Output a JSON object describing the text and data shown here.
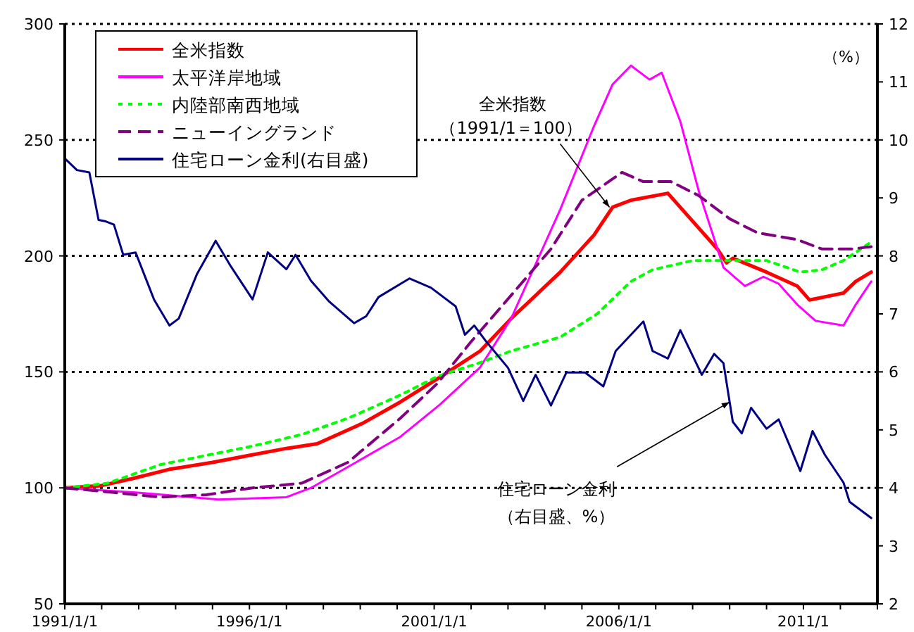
{
  "chart_data": {
    "type": "line",
    "y2label": "（%）",
    "xlim": [
      "1991-01-01",
      "2013-01-01"
    ],
    "xticks": [
      {
        "value": "1991-01-01",
        "label": "1991/1/1"
      },
      {
        "value": "1992-01-01",
        "label": null
      },
      {
        "value": "1993-01-01",
        "label": null
      },
      {
        "value": "1994-01-01",
        "label": null
      },
      {
        "value": "1995-01-01",
        "label": null
      },
      {
        "value": "1996-01-01",
        "label": "1996/1/1"
      },
      {
        "value": "1997-01-01",
        "label": null
      },
      {
        "value": "1998-01-01",
        "label": null
      },
      {
        "value": "1999-01-01",
        "label": null
      },
      {
        "value": "2000-01-01",
        "label": null
      },
      {
        "value": "2001-01-01",
        "label": "2001/1/1"
      },
      {
        "value": "2002-01-01",
        "label": null
      },
      {
        "value": "2003-01-01",
        "label": null
      },
      {
        "value": "2004-01-01",
        "label": null
      },
      {
        "value": "2005-01-01",
        "label": null
      },
      {
        "value": "2006-01-01",
        "label": "2006/1/1"
      },
      {
        "value": "2007-01-01",
        "label": null
      },
      {
        "value": "2008-01-01",
        "label": null
      },
      {
        "value": "2009-01-01",
        "label": null
      },
      {
        "value": "2010-01-01",
        "label": null
      },
      {
        "value": "2011-01-01",
        "label": "2011/1"
      },
      {
        "value": "2012-01-01",
        "label": null
      },
      {
        "value": "2013-01-01",
        "label": null
      }
    ],
    "ylim": [
      50,
      300
    ],
    "yticks": [
      50,
      100,
      150,
      200,
      250,
      300
    ],
    "y2lim": [
      2,
      12
    ],
    "y2ticks": [
      2,
      3,
      4,
      5,
      6,
      7,
      8,
      9,
      10,
      11,
      12
    ],
    "grid": "y",
    "legend": "top left",
    "annotations": [
      "全米指数",
      {
        "text": "（1991/1＝100）",
        "x": "2005-10",
        "y": 221
      },
      {
        "text": "住宅ローン金利",
        "x": "2009-01",
        "y": 137
      },
      "（右目盛、%）"
    ],
    "series": [
      {
        "name": "全米指数",
        "color": "#ff0000",
        "line_style": "solid",
        "x": [
          "1991-01",
          "1992-01",
          "1992-11",
          "1993-11",
          "1995-01",
          "1996-01",
          "1997-01",
          "1997-11",
          "1999-02",
          "2000-02",
          "2001-02",
          "2002-04",
          "2003-02",
          "2004-06",
          "2005-05",
          "2005-11",
          "2006-05",
          "2007-05",
          "2008-09",
          "2008-12",
          "2009-02",
          "2010-01",
          "2010-11",
          "2011-03",
          "2012-02",
          "2012-06",
          "2012-11"
        ],
        "values": [
          100,
          101,
          104,
          108,
          111,
          114,
          117,
          119,
          128,
          137,
          147,
          159,
          173,
          193,
          209,
          221,
          224,
          227,
          203,
          197,
          199,
          193,
          187,
          181,
          184,
          189,
          193
        ]
      },
      {
        "name": "太平洋岸地域",
        "color": "#ff00ff",
        "line_style": "solid",
        "x": [
          "1991-01",
          "1992-12",
          "1995-03",
          "1997-01",
          "1997-09",
          "1998-09",
          "2000-02",
          "2001-03",
          "2002-04",
          "2003-02",
          "2004-06",
          "2005-05",
          "2005-11",
          "2006-05",
          "2006-11",
          "2007-03",
          "2007-09",
          "2008-03",
          "2008-11",
          "2009-06",
          "2009-12",
          "2010-05",
          "2010-11",
          "2011-05",
          "2012-02",
          "2012-06",
          "2012-11"
        ],
        "values": [
          100,
          98,
          95,
          96,
          100,
          109,
          122,
          136,
          152,
          173,
          220,
          256,
          274,
          282,
          276,
          279,
          258,
          228,
          195,
          187,
          191,
          188,
          179,
          172,
          170,
          179,
          189
        ]
      },
      {
        "name": "内陸部南西地域",
        "color": "#00ff00",
        "line_style": "dotted",
        "x": [
          "1991-01",
          "1992-03",
          "1993-08",
          "1994-11",
          "1996-02",
          "1997-06",
          "1998-09",
          "2000-02",
          "2001-02",
          "2002-04",
          "2003-02",
          "2004-06",
          "2005-06",
          "2006-05",
          "2006-12",
          "2008-01",
          "2008-11",
          "2010-01",
          "2010-12",
          "2011-07",
          "2012-02",
          "2012-11"
        ],
        "values": [
          100,
          102,
          110,
          114,
          118,
          123,
          130,
          140,
          148,
          154,
          159,
          165,
          175,
          189,
          194,
          198,
          198,
          198,
          193,
          194,
          198,
          206
        ]
      },
      {
        "name": "ニューイングランド",
        "color": "#800080",
        "line_style": "dashed",
        "x": [
          "1991-01",
          "1992-05",
          "1993-08",
          "1994-11",
          "1996-02",
          "1997-06",
          "1998-09",
          "2000-02",
          "2001-02",
          "2002-01",
          "2003-02",
          "2004-03",
          "2005-01",
          "2006-02",
          "2006-09",
          "2007-06",
          "2008-03",
          "2009-01",
          "2009-10",
          "2010-11",
          "2011-07",
          "2012-05",
          "2012-11"
        ],
        "values": [
          100,
          98,
          96,
          97,
          100,
          102,
          111,
          130,
          145,
          163,
          183,
          203,
          224,
          236,
          232,
          232,
          226,
          216,
          210,
          207,
          203,
          203,
          204
        ]
      },
      {
        "name": "住宅ローン金利(右目盛)",
        "color": "#000080",
        "line_style": "solid",
        "axis": "y2",
        "x": [
          "1991-01",
          "1991-05",
          "1991-09",
          "1991-12",
          "1992-02",
          "1992-05",
          "1992-08",
          "1992-12",
          "1993-06",
          "1993-11",
          "1994-02",
          "1994-08",
          "1995-02",
          "1995-07",
          "1996-02",
          "1996-07",
          "1997-01",
          "1997-04",
          "1997-09",
          "1998-03",
          "1998-11",
          "1999-03",
          "1999-07",
          "2000-05",
          "2000-12",
          "2001-08",
          "2001-11",
          "2002-02",
          "2002-06",
          "2003-01",
          "2003-06",
          "2003-10",
          "2004-03",
          "2004-08",
          "2005-02",
          "2005-08",
          "2005-12",
          "2006-09",
          "2006-12",
          "2007-05",
          "2007-09",
          "2008-04",
          "2008-08",
          "2008-11",
          "2009-02",
          "2009-05",
          "2009-08",
          "2010-01",
          "2010-05",
          "2010-12",
          "2011-04",
          "2011-08",
          "2012-02",
          "2012-04",
          "2012-11"
        ],
        "values": [
          9.68,
          9.48,
          9.44,
          8.62,
          8.6,
          8.54,
          8.02,
          8.06,
          7.25,
          6.8,
          6.92,
          7.69,
          8.26,
          7.82,
          7.25,
          8.06,
          7.77,
          8.02,
          7.57,
          7.21,
          6.84,
          6.96,
          7.29,
          7.61,
          7.45,
          7.13,
          6.64,
          6.8,
          6.52,
          6.07,
          5.5,
          5.95,
          5.42,
          5.99,
          5.99,
          5.75,
          6.36,
          6.87,
          6.36,
          6.23,
          6.72,
          5.95,
          6.31,
          6.15,
          5.14,
          4.94,
          5.38,
          5.02,
          5.18,
          4.29,
          4.98,
          4.57,
          4.09,
          3.76,
          3.48
        ]
      }
    ]
  }
}
